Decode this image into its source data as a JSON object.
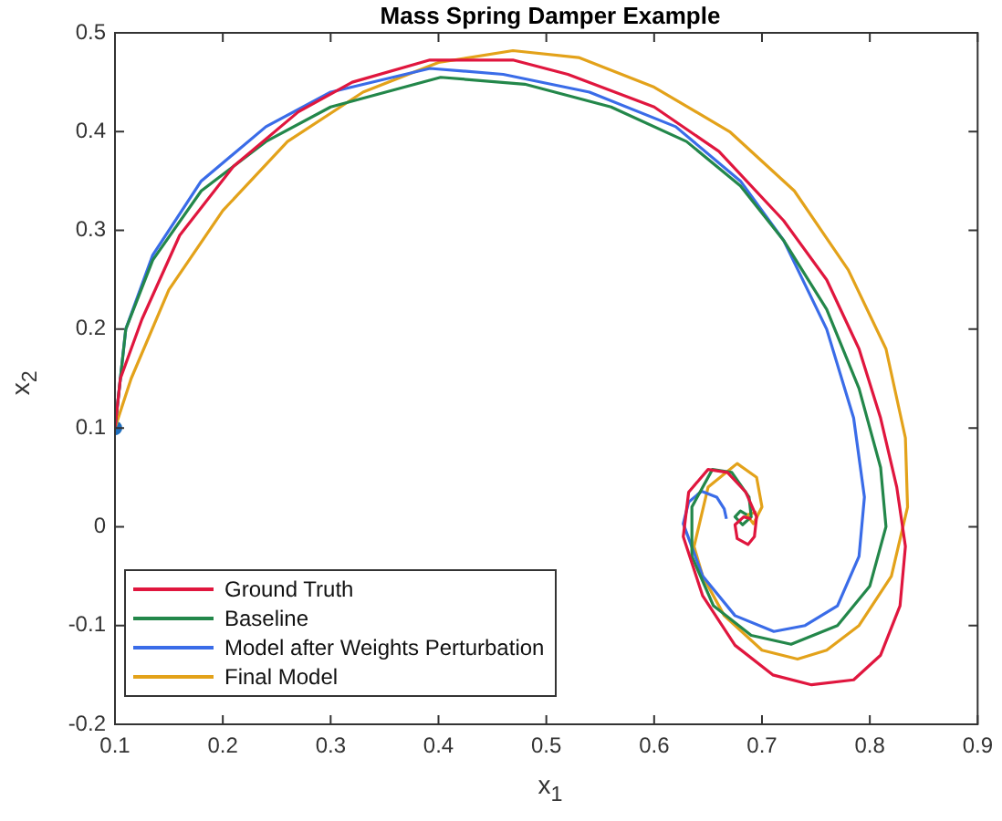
{
  "chart_data": {
    "type": "line",
    "title": "Mass Spring Damper Example",
    "xlabel": "x$_{1}$",
    "ylabel": "x$_{2}$",
    "xlim": [
      0.1,
      0.9
    ],
    "xticks": [
      0.1,
      0.2,
      0.3,
      0.4,
      0.5,
      0.6,
      0.7,
      0.8,
      0.9
    ],
    "ylim": [
      -0.2,
      0.5
    ],
    "yticks": [
      -0.2,
      -0.1,
      0,
      0.1,
      0.2,
      0.3,
      0.4,
      0.5
    ],
    "grid": false,
    "legend": "bottom left",
    "line_style": "solid",
    "marker": "none",
    "series": [
      {
        "name": "Ground Truth",
        "color": "#e0163e",
        "x": [
          0.1,
          0.105,
          0.125,
          0.16,
          0.21,
          0.27,
          0.32,
          0.392,
          0.469,
          0.52,
          0.6,
          0.66,
          0.72,
          0.76,
          0.79,
          0.81,
          0.825,
          0.833,
          0.828,
          0.81,
          0.785,
          0.746,
          0.71,
          0.675,
          0.645,
          0.627,
          0.632,
          0.65,
          0.668,
          0.685,
          0.695,
          0.693,
          0.687,
          0.677,
          0.675,
          0.683,
          0.69
        ],
        "values": [
          0.1,
          0.15,
          0.21,
          0.295,
          0.365,
          0.42,
          0.45,
          0.4725,
          0.4725,
          0.458,
          0.425,
          0.38,
          0.31,
          0.25,
          0.18,
          0.11,
          0.04,
          -0.02,
          -0.08,
          -0.13,
          -0.155,
          -0.16,
          -0.15,
          -0.12,
          -0.07,
          -0.01,
          0.035,
          0.058,
          0.055,
          0.035,
          0.01,
          -0.01,
          -0.018,
          -0.012,
          0.002,
          0.01,
          0.008
        ]
      },
      {
        "name": "Baseline",
        "color": "#23874a",
        "x": [
          0.1,
          0.11,
          0.135,
          0.18,
          0.24,
          0.3,
          0.402,
          0.48,
          0.56,
          0.63,
          0.68,
          0.72,
          0.76,
          0.79,
          0.81,
          0.815,
          0.8,
          0.77,
          0.727,
          0.69,
          0.655,
          0.635,
          0.635,
          0.654,
          0.672,
          0.688,
          0.69,
          0.682,
          0.675,
          0.68,
          0.686
        ],
        "values": [
          0.1,
          0.2,
          0.27,
          0.34,
          0.39,
          0.425,
          0.455,
          0.448,
          0.425,
          0.39,
          0.345,
          0.29,
          0.22,
          0.14,
          0.06,
          0,
          -0.06,
          -0.1,
          -0.119,
          -0.11,
          -0.08,
          -0.03,
          0.02,
          0.058,
          0.055,
          0.03,
          0.01,
          0.002,
          0.01,
          0.016,
          0.012
        ]
      },
      {
        "name": "Model after Weights Perturbation",
        "color": "#3a6ce8",
        "x": [
          0.1,
          0.11,
          0.135,
          0.18,
          0.24,
          0.3,
          0.392,
          0.46,
          0.54,
          0.62,
          0.68,
          0.72,
          0.76,
          0.785,
          0.795,
          0.79,
          0.77,
          0.74,
          0.711,
          0.675,
          0.645,
          0.627,
          0.632,
          0.644,
          0.658,
          0.665,
          0.667
        ],
        "values": [
          0.1,
          0.2,
          0.275,
          0.35,
          0.405,
          0.44,
          0.464,
          0.458,
          0.44,
          0.405,
          0.35,
          0.29,
          0.2,
          0.11,
          0.03,
          -0.03,
          -0.08,
          -0.1,
          -0.106,
          -0.09,
          -0.05,
          0.003,
          0.025,
          0.036,
          0.03,
          0.018,
          0.008
        ]
      },
      {
        "name": "Final Model",
        "color": "#e3a21a",
        "x": [
          0.1,
          0.115,
          0.15,
          0.2,
          0.26,
          0.33,
          0.4,
          0.469,
          0.53,
          0.6,
          0.67,
          0.73,
          0.78,
          0.815,
          0.833,
          0.835,
          0.82,
          0.79,
          0.76,
          0.733,
          0.7,
          0.665,
          0.645,
          0.637,
          0.65,
          0.677,
          0.695,
          0.7,
          0.692,
          0.686,
          0.695
        ],
        "values": [
          0.1,
          0.15,
          0.24,
          0.32,
          0.39,
          0.44,
          0.47,
          0.482,
          0.475,
          0.445,
          0.4,
          0.34,
          0.26,
          0.18,
          0.09,
          0.02,
          -0.05,
          -0.1,
          -0.125,
          -0.134,
          -0.125,
          -0.09,
          -0.05,
          -0.02,
          0.04,
          0.064,
          0.05,
          0.02,
          0.003,
          0.012,
          0.015
        ]
      },
      {
        "type": "scatter",
        "color": "#1f6fbf",
        "marker": "circle",
        "x": [
          0.1
        ],
        "values": [
          0.1
        ]
      }
    ]
  }
}
